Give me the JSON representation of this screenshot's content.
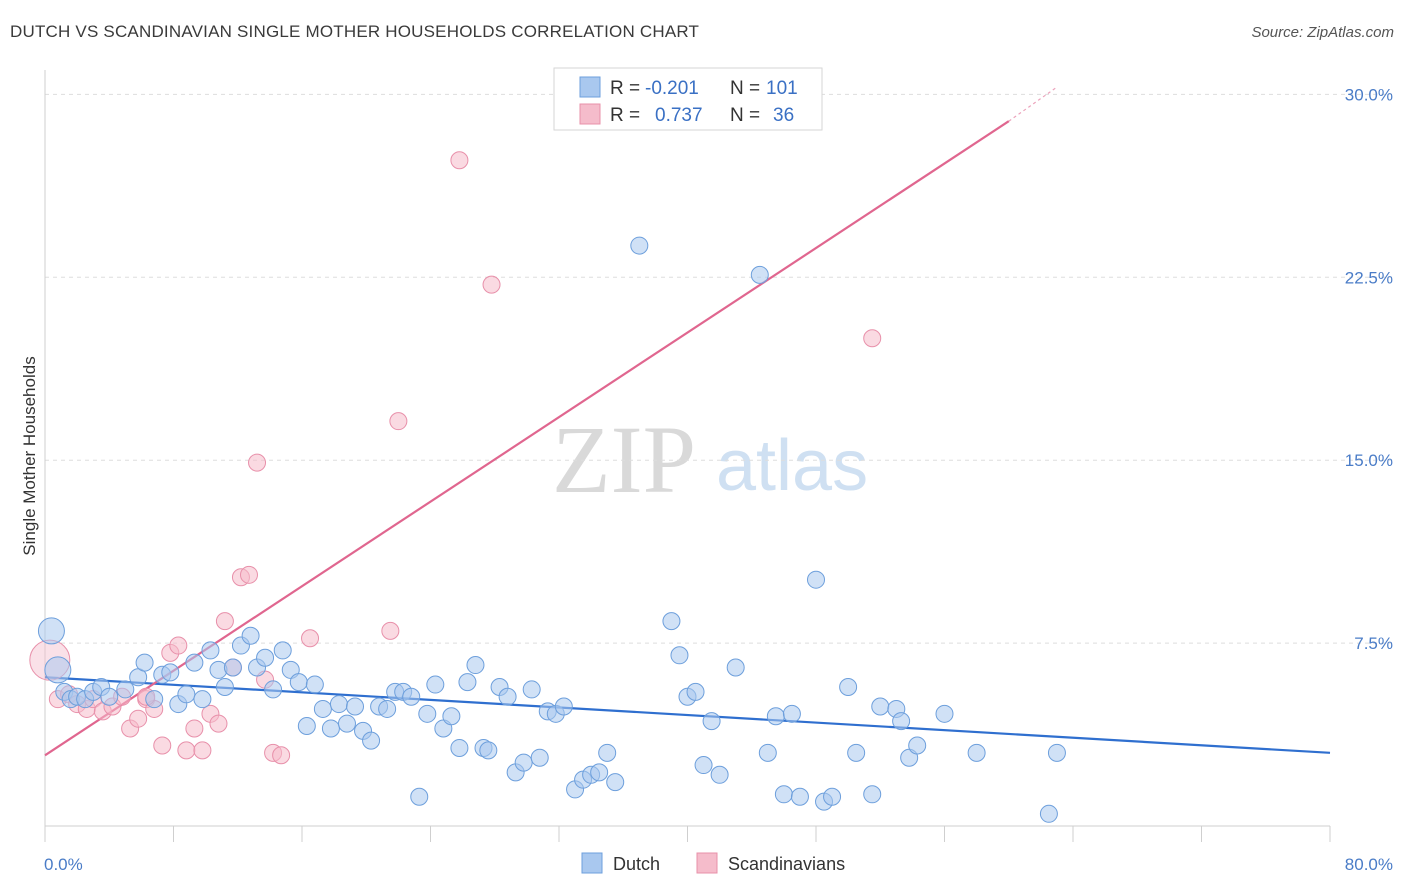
{
  "title": "DUTCH VS SCANDINAVIAN SINGLE MOTHER HOUSEHOLDS CORRELATION CHART",
  "source": "Source: ZipAtlas.com",
  "watermark": {
    "zip": "ZIP",
    "atlas": "atlas"
  },
  "colors": {
    "dutch_fill": "#a9c8ef",
    "dutch_stroke": "#6d9fdc",
    "dutch_line": "#2f6fcf",
    "scand_fill": "#f5bccb",
    "scand_stroke": "#e890aa",
    "scand_line": "#e0668f",
    "grid": "#dddddd",
    "axis_text": "#4a7cc7"
  },
  "legend": {
    "rows": [
      {
        "r_label": "R =",
        "r_value": "-0.201",
        "n_label": "N =",
        "n_value": "101"
      },
      {
        "r_label": "R =",
        "r_value": "0.737",
        "n_label": "N =",
        "n_value": "36"
      }
    ]
  },
  "bottom_legend": {
    "dutch": "Dutch",
    "scand": "Scandinavians"
  },
  "chart_data": {
    "type": "scatter",
    "title": "DUTCH VS SCANDINAVIAN SINGLE MOTHER HOUSEHOLDS CORRELATION CHART",
    "xlabel": "",
    "ylabel": "Single Mother Households",
    "xlim": [
      0,
      80
    ],
    "ylim": [
      0,
      31
    ],
    "x_tick_labels": [
      "0.0%",
      "80.0%"
    ],
    "y_ticks": [
      7.5,
      15.0,
      22.5,
      30.0
    ],
    "y_tick_labels": [
      "7.5%",
      "15.0%",
      "22.5%",
      "30.0%"
    ],
    "series": [
      {
        "name": "Dutch",
        "r": -0.201,
        "n": 101,
        "trend": {
          "x": [
            0,
            80
          ],
          "y": [
            6.1,
            3.0
          ]
        },
        "points": [
          [
            0.4,
            8.0
          ],
          [
            0.8,
            6.4
          ],
          [
            1.2,
            5.5
          ],
          [
            1.6,
            5.2
          ],
          [
            2.0,
            5.3
          ],
          [
            2.5,
            5.2
          ],
          [
            3.0,
            5.5
          ],
          [
            3.5,
            5.7
          ],
          [
            4.0,
            5.3
          ],
          [
            5.0,
            5.6
          ],
          [
            5.8,
            6.1
          ],
          [
            6.2,
            6.7
          ],
          [
            6.8,
            5.2
          ],
          [
            7.3,
            6.2
          ],
          [
            7.8,
            6.3
          ],
          [
            8.3,
            5.0
          ],
          [
            8.8,
            5.4
          ],
          [
            9.3,
            6.7
          ],
          [
            9.8,
            5.2
          ],
          [
            10.3,
            7.2
          ],
          [
            10.8,
            6.4
          ],
          [
            11.2,
            5.7
          ],
          [
            11.7,
            6.5
          ],
          [
            12.2,
            7.4
          ],
          [
            12.8,
            7.8
          ],
          [
            13.2,
            6.5
          ],
          [
            13.7,
            6.9
          ],
          [
            14.2,
            5.6
          ],
          [
            14.8,
            7.2
          ],
          [
            15.3,
            6.4
          ],
          [
            15.8,
            5.9
          ],
          [
            16.3,
            4.1
          ],
          [
            16.8,
            5.8
          ],
          [
            17.3,
            4.8
          ],
          [
            17.8,
            4.0
          ],
          [
            18.3,
            5.0
          ],
          [
            18.8,
            4.2
          ],
          [
            19.3,
            4.9
          ],
          [
            19.8,
            3.9
          ],
          [
            20.3,
            3.5
          ],
          [
            20.8,
            4.9
          ],
          [
            21.3,
            4.8
          ],
          [
            21.8,
            5.5
          ],
          [
            22.3,
            5.5
          ],
          [
            22.8,
            5.3
          ],
          [
            23.3,
            1.2
          ],
          [
            23.8,
            4.6
          ],
          [
            24.3,
            5.8
          ],
          [
            24.8,
            4.0
          ],
          [
            25.3,
            4.5
          ],
          [
            25.8,
            3.2
          ],
          [
            26.3,
            5.9
          ],
          [
            26.8,
            6.6
          ],
          [
            27.3,
            3.2
          ],
          [
            27.6,
            3.1
          ],
          [
            28.3,
            5.7
          ],
          [
            28.8,
            5.3
          ],
          [
            29.3,
            2.2
          ],
          [
            29.8,
            2.6
          ],
          [
            30.3,
            5.6
          ],
          [
            30.8,
            2.8
          ],
          [
            31.3,
            4.7
          ],
          [
            31.8,
            4.6
          ],
          [
            32.3,
            4.9
          ],
          [
            33.0,
            1.5
          ],
          [
            33.5,
            1.9
          ],
          [
            34.0,
            2.1
          ],
          [
            34.5,
            2.2
          ],
          [
            35.0,
            3.0
          ],
          [
            35.5,
            1.8
          ],
          [
            37.0,
            23.8
          ],
          [
            39.0,
            8.4
          ],
          [
            39.5,
            7.0
          ],
          [
            40.0,
            5.3
          ],
          [
            40.5,
            5.5
          ],
          [
            41.0,
            2.5
          ],
          [
            41.5,
            4.3
          ],
          [
            42.0,
            2.1
          ],
          [
            43.0,
            6.5
          ],
          [
            44.5,
            22.6
          ],
          [
            45.0,
            3.0
          ],
          [
            45.5,
            4.5
          ],
          [
            46.0,
            1.3
          ],
          [
            46.5,
            4.6
          ],
          [
            47.0,
            1.2
          ],
          [
            48.0,
            10.1
          ],
          [
            48.5,
            1.0
          ],
          [
            49.0,
            1.2
          ],
          [
            50.0,
            5.7
          ],
          [
            50.5,
            3.0
          ],
          [
            51.5,
            1.3
          ],
          [
            52.0,
            4.9
          ],
          [
            53.0,
            4.8
          ],
          [
            53.3,
            4.3
          ],
          [
            53.8,
            2.8
          ],
          [
            54.3,
            3.3
          ],
          [
            56.0,
            4.6
          ],
          [
            58.0,
            3.0
          ],
          [
            63.0,
            3.0
          ],
          [
            62.5,
            0.5
          ]
        ]
      },
      {
        "name": "Scandinavians",
        "r": 0.737,
        "n": 36,
        "trend": {
          "x": [
            0,
            60
          ],
          "y": [
            2.9,
            28.9
          ]
        },
        "trend_dashed": {
          "x": [
            60,
            63
          ],
          "y": [
            28.9,
            30.3
          ]
        },
        "points": [
          [
            0.3,
            6.8
          ],
          [
            0.8,
            5.2
          ],
          [
            1.5,
            5.4
          ],
          [
            2.0,
            5.0
          ],
          [
            2.6,
            4.8
          ],
          [
            3.0,
            5.2
          ],
          [
            3.6,
            4.7
          ],
          [
            4.2,
            4.9
          ],
          [
            4.8,
            5.3
          ],
          [
            5.3,
            4.0
          ],
          [
            5.8,
            4.4
          ],
          [
            6.3,
            5.2
          ],
          [
            6.8,
            4.8
          ],
          [
            7.3,
            3.3
          ],
          [
            7.8,
            7.1
          ],
          [
            8.3,
            7.4
          ],
          [
            8.8,
            3.1
          ],
          [
            9.3,
            4.0
          ],
          [
            9.8,
            3.1
          ],
          [
            10.3,
            4.6
          ],
          [
            10.8,
            4.2
          ],
          [
            11.2,
            8.4
          ],
          [
            11.7,
            6.5
          ],
          [
            12.2,
            10.2
          ],
          [
            12.7,
            10.3
          ],
          [
            13.2,
            14.9
          ],
          [
            13.7,
            6.0
          ],
          [
            14.2,
            3.0
          ],
          [
            14.7,
            2.9
          ],
          [
            16.5,
            7.7
          ],
          [
            21.5,
            8.0
          ],
          [
            22.0,
            16.6
          ],
          [
            25.8,
            27.3
          ],
          [
            27.8,
            22.2
          ],
          [
            51.5,
            20.0
          ],
          [
            6.3,
            5.3
          ]
        ]
      }
    ]
  }
}
